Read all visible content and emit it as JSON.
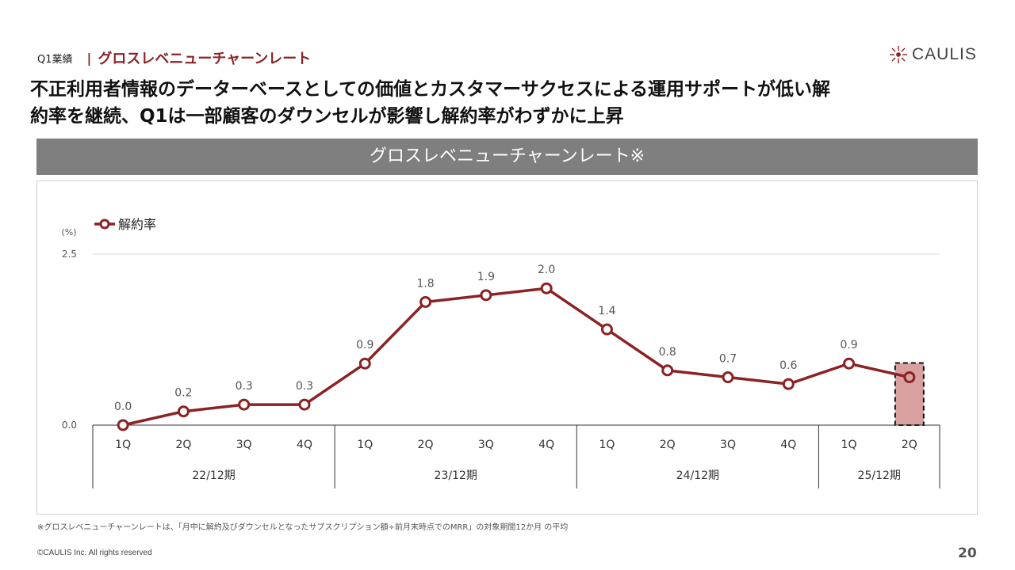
{
  "header": {
    "breadcrumb": "Q1業績",
    "divider": "|",
    "section": "グロスレベニューチャーンレート"
  },
  "logo": {
    "name": "CAULIS",
    "color": "#8b2325"
  },
  "headline": {
    "line1": "不正利用者情報のデーターベースとしての価値とカスタマーサクセスによる運用サポートが低い解",
    "line2": "約率を継続、Q1は一部顧客のダウンセルが影響し解約率がわずかに上昇"
  },
  "chart_banner": "グロスレベニューチャーンレート※",
  "chart_data": {
    "type": "line",
    "y_unit": "(%)",
    "ylim": [
      0,
      2.5
    ],
    "y_ticks": [
      "0.0",
      "2.5"
    ],
    "categories": [
      "1Q",
      "2Q",
      "3Q",
      "4Q",
      "1Q",
      "2Q",
      "3Q",
      "4Q",
      "1Q",
      "2Q",
      "3Q",
      "4Q",
      "1Q",
      "2Q"
    ],
    "groups": [
      {
        "label": "22/12期",
        "count": 4
      },
      {
        "label": "23/12期",
        "count": 4
      },
      {
        "label": "24/12期",
        "count": 4
      },
      {
        "label": "25/12期",
        "count": 2
      }
    ],
    "series": [
      {
        "name": "解約率",
        "color": "#8b2325",
        "values": [
          0.0,
          0.2,
          0.3,
          0.3,
          0.9,
          1.8,
          1.9,
          2.0,
          1.4,
          0.8,
          0.7,
          0.6,
          0.9,
          0.7
        ],
        "labels": [
          "0.0",
          "0.2",
          "0.3",
          "0.3",
          "0.9",
          "1.8",
          "1.9",
          "2.0",
          "1.4",
          "0.8",
          "0.7",
          "0.6",
          "0.9",
          ""
        ]
      }
    ],
    "highlight_index": 13,
    "highlight_color": "#d9a0a0",
    "grid": true,
    "legend": "top-left"
  },
  "footnote": "※グロスレベニューチャーンレートは、「月中に解約及びダウンセルとなったサブスクリプション額÷前月末時点でのMRR」の対象期間12か月 の平均",
  "copyright": "©CAULIS Inc. All rights reserved",
  "page_number": "20"
}
